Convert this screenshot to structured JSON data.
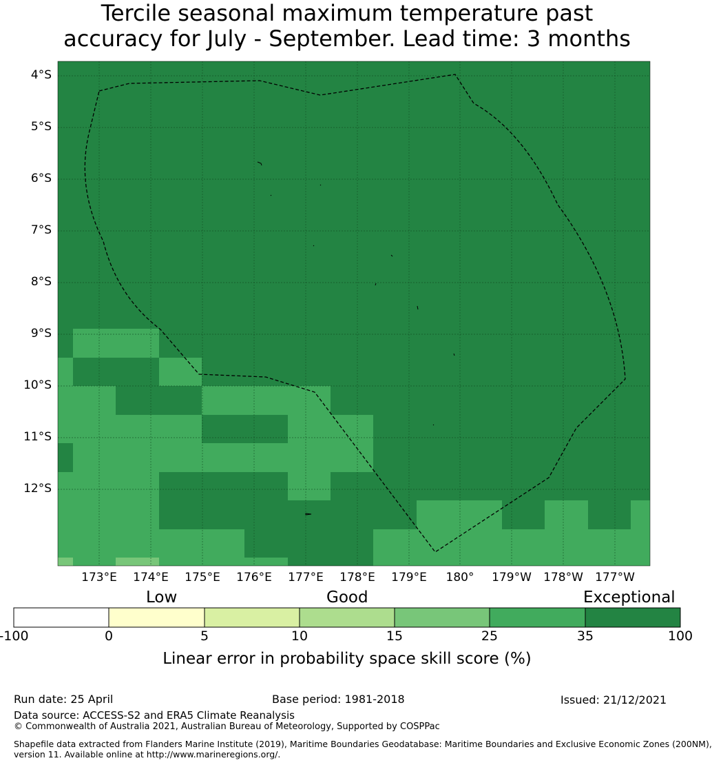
{
  "title": {
    "line1": "Tercile seasonal maximum temperature past",
    "line2": "accuracy for July - September. Lead time: 3 months"
  },
  "map": {
    "lat_labels": [
      "4°S",
      "5°S",
      "6°S",
      "7°S",
      "8°S",
      "9°S",
      "10°S",
      "11°S",
      "12°S"
    ],
    "lon_labels": [
      "173°E",
      "174°E",
      "175°E",
      "176°E",
      "177°E",
      "178°E",
      "179°E",
      "180°",
      "179°W",
      "178°W",
      "177°W"
    ],
    "boundary_style": "dashed black EEZ outline",
    "gridlines": true
  },
  "colorbar": {
    "categories": [
      "Low",
      "Good",
      "Exceptional"
    ],
    "ticks": [
      "-100",
      "0",
      "5",
      "10",
      "15",
      "25",
      "35",
      "100"
    ],
    "colors": [
      "#ffffff",
      "#ffffcc",
      "#d9f0a3",
      "#addd8e",
      "#78c679",
      "#41ab5d",
      "#238443"
    ],
    "label": "Linear error in probability space skill score (%)"
  },
  "footer": {
    "run_date": "Run date: 25 April",
    "base_period": "Base period: 1981-2018",
    "issued": "Issued: 21/12/2021",
    "data_source": "Data source: ACCESS-S2 and ERA5 Climate Reanalysis",
    "copyright": "© Commonwealth of Australia 2021, Australian Bureau of Meteorology, Supported by COSPPac",
    "shapefile_line1": "Shapefile data extracted from Flanders Marine Institute (2019), Maritime Boundaries Geodatabase: Maritime Boundaries and Exclusive Economic Zones (200NM),",
    "shapefile_line2": "version 11. Available online at http://www.marineregions.org/."
  }
}
